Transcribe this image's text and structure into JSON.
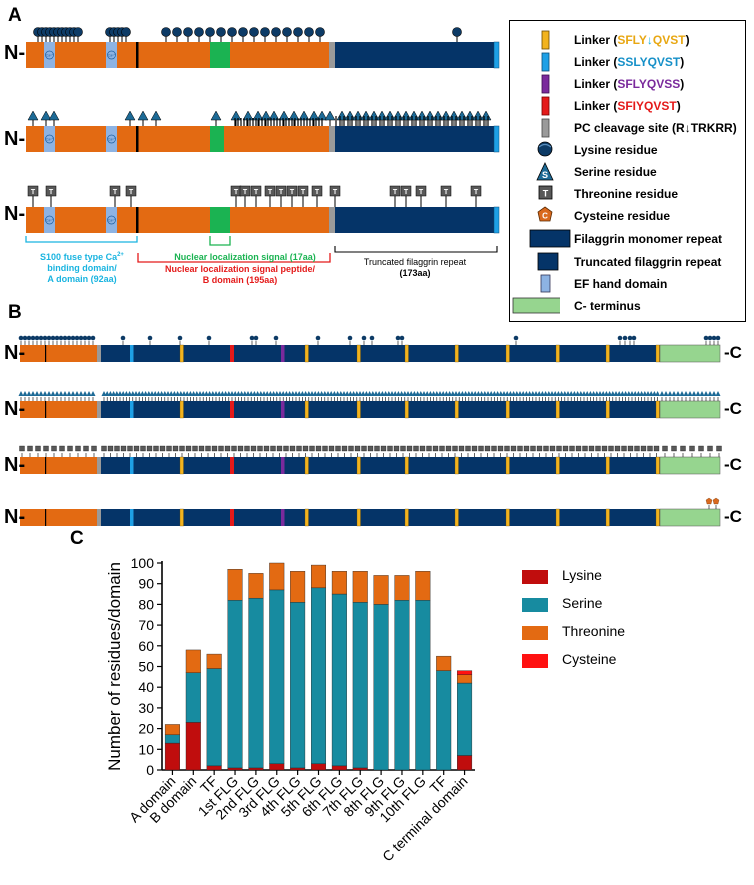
{
  "panels": {
    "a": "A",
    "b": "B",
    "c": "C"
  },
  "terminals": {
    "n": "N-",
    "c": "-C"
  },
  "icon_letters": {
    "serine": "S",
    "threonine": "T",
    "cysteine": "C",
    "ca": "Ca²⁺"
  },
  "colors": {
    "domain_orange": "#e36a12",
    "repeat_navy": "#053468",
    "cterm_green": "#96d58f",
    "nls_green": "#1bb352",
    "ef_hand": "#8db3e3",
    "linker_yellow": "#f2b31e",
    "linker_cyan": "#1ea0e6",
    "linker_purple": "#7a2a9c",
    "linker_red": "#e41a1a",
    "pc_gray": "#9a9a9a",
    "lysine": "#d40f0f",
    "serine": "#17849c",
    "threonine": "#e36a12",
    "cysteine": "#ff1111"
  },
  "panel_a": {
    "annotations": {
      "s100_line1": "S100 fuse type Ca",
      "s100_line1_sup": "2+",
      "s100_line2": "binding domain/",
      "s100_line3": "A domain (92aa)",
      "nls": "Nuclear localization signal (17aa)",
      "nls_peptide_line1": "Nuclear localization signal peptide/",
      "nls_peptide_line2": "B domain (195aa)",
      "truncated_line1": "Truncated filaggrin repeat",
      "truncated_line2": "(173aa)"
    },
    "legend": [
      {
        "key": "linker1",
        "icon": "yellow-linker-icon",
        "pre": "Linker (",
        "seg1": "SFLY",
        "arrow": "↓",
        "seg2": "QVST",
        "post": ")"
      },
      {
        "key": "linker2",
        "icon": "cyan-linker-icon",
        "pre": "Linker (",
        "seg1": "SSLYQVST",
        "post": ")"
      },
      {
        "key": "linker3",
        "icon": "purple-linker-icon",
        "pre": "Linker (",
        "seg1": "SFLYQVSS",
        "post": ")"
      },
      {
        "key": "linker4",
        "icon": "red-linker-icon",
        "pre": "Linker (",
        "seg1": "SFIYQVST",
        "post": ")"
      },
      {
        "key": "pc",
        "icon": "gray-cleavage-icon",
        "text": "PC cleavage site (R↓TRKRR)"
      },
      {
        "key": "lysine",
        "icon": "lysine-pin-icon",
        "text": "Lysine residue"
      },
      {
        "key": "serine",
        "icon": "serine-pin-icon",
        "text": "Serine residue"
      },
      {
        "key": "threonine",
        "icon": "threonine-pin-icon",
        "text": "Threonine residue"
      },
      {
        "key": "cysteine",
        "icon": "cysteine-pin-icon",
        "text": "Cysteine residue"
      },
      {
        "key": "monomer",
        "icon": "monomer-box-icon",
        "text": "Filaggrin monomer repeat"
      },
      {
        "key": "truncated",
        "icon": "truncated-box-icon",
        "text": "Truncated filaggrin repeat"
      },
      {
        "key": "ef",
        "icon": "ef-hand-icon",
        "text": "EF hand domain"
      },
      {
        "key": "cterm",
        "icon": "c-terminus-box-icon",
        "text": "C- terminus"
      }
    ]
  },
  "chart_data": {
    "type": "bar",
    "stacked": true,
    "ylabel": "Number of residues/domain",
    "xlabel": "",
    "ylim": [
      0,
      100
    ],
    "yticks": [
      0,
      10,
      20,
      30,
      40,
      50,
      60,
      70,
      80,
      90,
      100
    ],
    "legend_position": "right",
    "categories": [
      "A domain",
      "B domain",
      "TF",
      "1st FLG",
      "2nd FLG",
      "3rd FLG",
      "4th FLG",
      "5th FLG",
      "6th FLG",
      "7th FLG",
      "8th FLG",
      "9th FLG",
      "10th FLG",
      "TF",
      "C terminal domain"
    ],
    "series": [
      {
        "name": "Lysine",
        "color": "#c00d0d",
        "values": [
          13,
          23,
          2,
          1,
          1,
          3,
          1,
          3,
          2,
          1,
          0,
          0,
          0,
          0,
          7
        ]
      },
      {
        "name": "Serine",
        "color": "#178ba0",
        "values": [
          4,
          24,
          47,
          81,
          82,
          84,
          80,
          85,
          83,
          80,
          80,
          82,
          82,
          48,
          35
        ]
      },
      {
        "name": "Threonine",
        "color": "#e36a12",
        "values": [
          5,
          11,
          7,
          15,
          12,
          13,
          15,
          11,
          11,
          15,
          14,
          12,
          14,
          7,
          4
        ]
      },
      {
        "name": "Cysteine",
        "color": "#ff1111",
        "values": [
          0,
          0,
          0,
          0,
          0,
          0,
          0,
          0,
          0,
          0,
          0,
          0,
          0,
          0,
          2
        ]
      }
    ]
  }
}
